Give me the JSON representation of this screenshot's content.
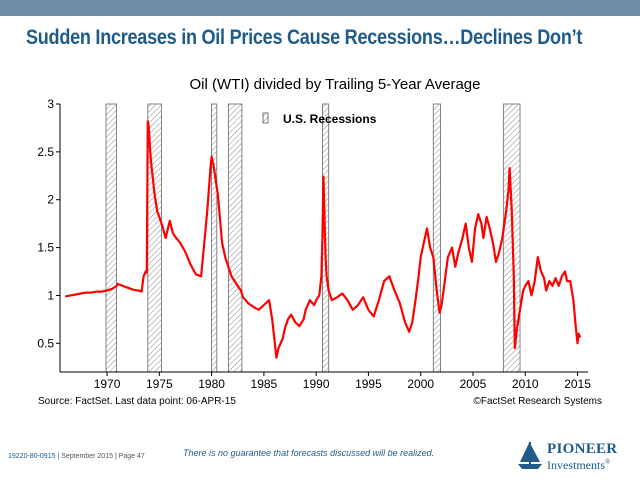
{
  "slide": {
    "headline": "Sudden Increases in Oil Prices Cause Recessions…Declines Don’t",
    "footer_code": "19220-80-0915",
    "footer_date": "September 2015",
    "footer_page": "Page 47",
    "disclaimer": "There is no guarantee that forecasts discussed will be realized.",
    "logo_name": "PIONEER",
    "logo_sub": "Investments",
    "logo_mark": "®",
    "accent_color": "#1f5b8a",
    "topbar_color": "#6f8ea5"
  },
  "chart_data": {
    "type": "line",
    "title": "Oil (WTI) divided by Trailing 5-Year Average",
    "xlabel": "",
    "ylabel": "",
    "xlim": [
      1965.5,
      2016
    ],
    "ylim": [
      0.2,
      3
    ],
    "xticks": [
      1970,
      1975,
      1980,
      1985,
      1990,
      1995,
      2000,
      2005,
      2010,
      2015
    ],
    "yticks": [
      0.5,
      1,
      1.5,
      2,
      2.5,
      3
    ],
    "ytick_labels": [
      "0.5",
      "1",
      "1.5",
      "2",
      "2.5",
      "3"
    ],
    "grid": false,
    "line_color": "#ff0000",
    "legend": {
      "label": "U.S. Recessions",
      "placement": "top"
    },
    "source": "Source: FactSet. Last data point: 06-APR-15",
    "credit": "©FactSet Research Systems",
    "recessions": [
      [
        1969.9,
        1970.9
      ],
      [
        1973.9,
        1975.2
      ],
      [
        1980.0,
        1980.5
      ],
      [
        1981.6,
        1982.9
      ],
      [
        1990.6,
        1991.2
      ],
      [
        2001.2,
        2001.9
      ],
      [
        2007.9,
        2009.5
      ]
    ],
    "series": [
      {
        "x": [
          1966.0,
          1966.5,
          1967.0,
          1967.5,
          1968.0,
          1968.5,
          1969.0,
          1969.5,
          1970.0,
          1970.5,
          1970.9,
          1971.0,
          1971.5,
          1972.0,
          1972.5,
          1973.0,
          1973.3,
          1973.5,
          1973.7,
          1973.8,
          1973.9,
          1974.0,
          1974.1,
          1974.2,
          1974.3,
          1974.4,
          1974.5,
          1974.6,
          1974.7,
          1974.8,
          1975.0,
          1975.3,
          1975.6,
          1976.0,
          1976.3,
          1976.6,
          1977.0,
          1977.5,
          1978.0,
          1978.5,
          1979.0,
          1979.3,
          1979.6,
          1979.9,
          1980.0,
          1980.2,
          1980.4,
          1980.6,
          1980.8,
          1981.0,
          1981.3,
          1981.6,
          1981.9,
          1982.2,
          1982.5,
          1982.8,
          1983.0,
          1983.5,
          1984.0,
          1984.5,
          1985.0,
          1985.5,
          1985.8,
          1986.0,
          1986.2,
          1986.4,
          1986.6,
          1986.8,
          1987.0,
          1987.3,
          1987.6,
          1988.0,
          1988.4,
          1988.8,
          1989.0,
          1989.4,
          1989.8,
          1990.0,
          1990.3,
          1990.5,
          1990.6,
          1990.7,
          1990.8,
          1990.9,
          1991.0,
          1991.2,
          1991.5,
          1992.0,
          1992.5,
          1993.0,
          1993.5,
          1994.0,
          1994.5,
          1995.0,
          1995.5,
          1996.0,
          1996.5,
          1997.0,
          1997.5,
          1998.0,
          1998.5,
          1998.9,
          1999.2,
          1999.5,
          1999.8,
          2000.0,
          2000.3,
          2000.6,
          2000.9,
          2001.2,
          2001.5,
          2001.8,
          2002.0,
          2002.3,
          2002.6,
          2003.0,
          2003.3,
          2003.6,
          2004.0,
          2004.3,
          2004.6,
          2004.9,
          2005.2,
          2005.5,
          2005.8,
          2006.0,
          2006.3,
          2006.6,
          2006.9,
          2007.2,
          2007.5,
          2007.8,
          2008.0,
          2008.2,
          2008.4,
          2008.5,
          2008.7,
          2008.9,
          2009.0,
          2009.2,
          2009.5,
          2009.8,
          2010.0,
          2010.3,
          2010.6,
          2010.9,
          2011.2,
          2011.5,
          2011.8,
          2012.0,
          2012.3,
          2012.6,
          2012.9,
          2013.2,
          2013.5,
          2013.8,
          2014.0,
          2014.3,
          2014.6,
          2014.8,
          2015.0,
          2015.1,
          2015.25
        ],
        "y": [
          0.99,
          1.0,
          1.01,
          1.02,
          1.03,
          1.03,
          1.04,
          1.04,
          1.05,
          1.07,
          1.1,
          1.12,
          1.1,
          1.08,
          1.06,
          1.05,
          1.04,
          1.2,
          1.25,
          1.24,
          2.82,
          2.75,
          2.55,
          2.4,
          2.3,
          2.2,
          2.1,
          2.02,
          1.95,
          1.88,
          1.82,
          1.72,
          1.6,
          1.78,
          1.65,
          1.6,
          1.55,
          1.45,
          1.32,
          1.22,
          1.2,
          1.55,
          1.9,
          2.35,
          2.45,
          2.35,
          2.2,
          2.05,
          1.8,
          1.55,
          1.4,
          1.3,
          1.2,
          1.15,
          1.1,
          1.05,
          0.98,
          0.92,
          0.88,
          0.85,
          0.9,
          0.95,
          0.75,
          0.55,
          0.35,
          0.45,
          0.5,
          0.55,
          0.65,
          0.75,
          0.8,
          0.72,
          0.68,
          0.75,
          0.85,
          0.95,
          0.9,
          0.95,
          1.0,
          1.2,
          1.6,
          2.24,
          1.8,
          1.4,
          1.2,
          1.05,
          0.95,
          0.98,
          1.02,
          0.95,
          0.85,
          0.9,
          0.98,
          0.85,
          0.78,
          0.95,
          1.15,
          1.2,
          1.05,
          0.92,
          0.72,
          0.62,
          0.72,
          0.95,
          1.2,
          1.4,
          1.55,
          1.7,
          1.5,
          1.4,
          1.08,
          0.82,
          0.9,
          1.15,
          1.4,
          1.5,
          1.3,
          1.45,
          1.6,
          1.75,
          1.5,
          1.35,
          1.7,
          1.85,
          1.75,
          1.6,
          1.82,
          1.7,
          1.55,
          1.35,
          1.45,
          1.6,
          1.75,
          1.9,
          2.1,
          2.33,
          1.9,
          1.2,
          0.45,
          0.65,
          0.85,
          1.05,
          1.1,
          1.15,
          1.0,
          1.15,
          1.4,
          1.25,
          1.18,
          1.05,
          1.15,
          1.1,
          1.18,
          1.1,
          1.2,
          1.25,
          1.15,
          1.15,
          0.95,
          0.7,
          0.5,
          0.6,
          0.56
        ]
      }
    ]
  }
}
